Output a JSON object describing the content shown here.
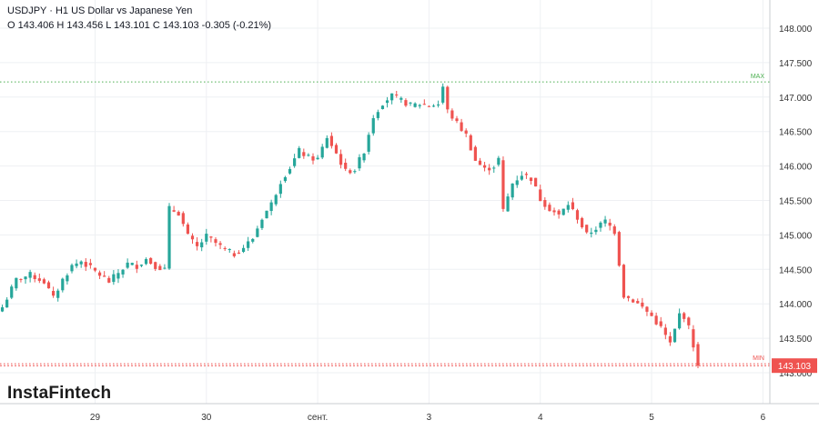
{
  "header": {
    "title": "USDJPY · H1 US Dollar vs Japanese Yen",
    "ohlc": "O 143.406 H 143.456 L 143.101 C 143.103  -0.305 (-0.21%)"
  },
  "brand": {
    "name": "InstaFintech"
  },
  "colors": {
    "up": "#26a69a",
    "down": "#ef5350",
    "grid": "#eef0f3",
    "axis_text": "#333333",
    "max_line": "#4caf50",
    "min_line": "#ef5350",
    "price_tag_bg": "#ef5350",
    "price_tag_text": "#ffffff"
  },
  "chart_data": {
    "type": "candlestick",
    "symbol": "USDJPY",
    "timeframe": "H1",
    "ylim": [
      142.9,
      148.4
    ],
    "yticks": [
      "143.000",
      "143.500",
      "144.000",
      "144.500",
      "145.000",
      "145.500",
      "146.000",
      "146.500",
      "147.000",
      "147.500",
      "148.000"
    ],
    "yticks_values": [
      143.0,
      143.5,
      144.0,
      144.5,
      145.0,
      145.5,
      146.0,
      146.5,
      147.0,
      147.5,
      148.0
    ],
    "xticks": [
      {
        "label": "29",
        "index": 20
      },
      {
        "label": "30",
        "index": 44
      },
      {
        "label": "сент.",
        "index": 68
      },
      {
        "label": "3",
        "index": 92
      },
      {
        "label": "4",
        "index": 116
      },
      {
        "label": "5",
        "index": 140
      },
      {
        "label": "6",
        "index": 164
      }
    ],
    "x_count": 166,
    "max_level": {
      "label": "MAX",
      "value": 147.22
    },
    "min_level": {
      "label": "MIN",
      "value": 143.13
    },
    "last_price": {
      "label": "143.103",
      "value": 143.103
    },
    "close_path": [
      [
        0,
        143.95
      ],
      [
        3,
        144.35
      ],
      [
        6,
        144.42
      ],
      [
        9,
        144.32
      ],
      [
        11,
        144.08
      ],
      [
        13,
        144.35
      ],
      [
        15,
        144.55
      ],
      [
        17,
        144.62
      ],
      [
        19,
        144.52
      ],
      [
        21,
        144.42
      ],
      [
        23,
        144.32
      ],
      [
        25,
        144.45
      ],
      [
        27,
        144.58
      ],
      [
        29,
        144.55
      ],
      [
        31,
        144.65
      ],
      [
        33,
        144.55
      ],
      [
        35,
        144.5
      ],
      [
        36,
        145.38
      ],
      [
        38,
        145.32
      ],
      [
        40,
        144.98
      ],
      [
        42,
        144.82
      ],
      [
        44,
        144.98
      ],
      [
        46,
        144.88
      ],
      [
        48,
        144.78
      ],
      [
        50,
        144.72
      ],
      [
        52,
        144.82
      ],
      [
        54,
        144.95
      ],
      [
        56,
        145.25
      ],
      [
        58,
        145.45
      ],
      [
        60,
        145.78
      ],
      [
        62,
        145.98
      ],
      [
        64,
        146.22
      ],
      [
        66,
        146.12
      ],
      [
        68,
        146.1
      ],
      [
        70,
        146.42
      ],
      [
        72,
        146.18
      ],
      [
        74,
        145.92
      ],
      [
        76,
        145.95
      ],
      [
        78,
        146.22
      ],
      [
        80,
        146.72
      ],
      [
        82,
        146.92
      ],
      [
        84,
        147.02
      ],
      [
        86,
        146.95
      ],
      [
        88,
        146.88
      ],
      [
        90,
        146.9
      ],
      [
        92,
        146.88
      ],
      [
        94,
        146.9
      ],
      [
        95,
        147.15
      ],
      [
        96,
        146.8
      ],
      [
        98,
        146.62
      ],
      [
        100,
        146.45
      ],
      [
        102,
        146.08
      ],
      [
        104,
        145.95
      ],
      [
        106,
        146.0
      ],
      [
        107,
        146.1
      ],
      [
        108,
        145.35
      ],
      [
        110,
        145.75
      ],
      [
        112,
        145.88
      ],
      [
        114,
        145.82
      ],
      [
        116,
        145.52
      ],
      [
        118,
        145.38
      ],
      [
        120,
        145.28
      ],
      [
        122,
        145.45
      ],
      [
        124,
        145.25
      ],
      [
        126,
        145.0
      ],
      [
        128,
        145.1
      ],
      [
        130,
        145.2
      ],
      [
        132,
        145.05
      ],
      [
        134,
        144.12
      ],
      [
        136,
        144.05
      ],
      [
        138,
        143.95
      ],
      [
        140,
        143.82
      ],
      [
        142,
        143.65
      ],
      [
        144,
        143.42
      ],
      [
        145,
        143.62
      ],
      [
        146,
        143.85
      ],
      [
        147,
        143.82
      ],
      [
        148,
        143.65
      ],
      [
        149,
        143.4
      ],
      [
        150,
        143.103
      ]
    ]
  }
}
